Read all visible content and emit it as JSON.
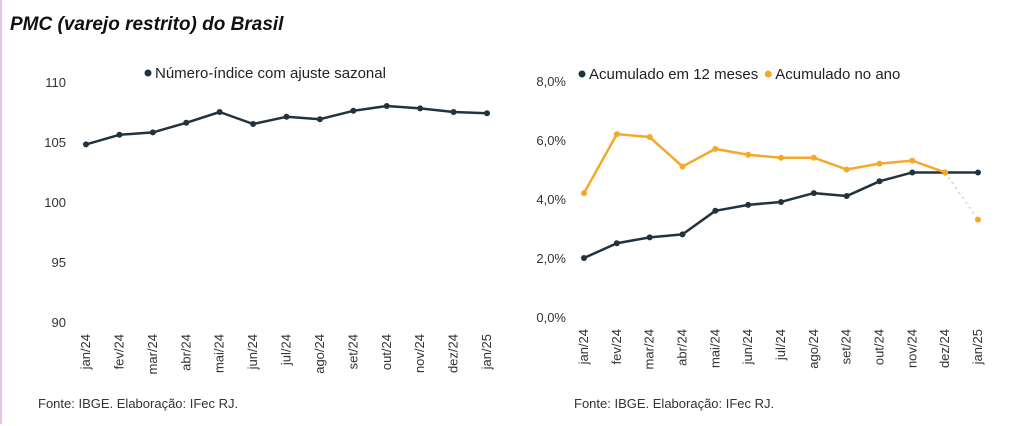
{
  "title": "PMC (varejo restrito) do Brasil",
  "colors": {
    "dark": "#223340",
    "orange": "#f5a92b"
  },
  "chart_data": [
    {
      "type": "line",
      "categories": [
        "jan/24",
        "fev/24",
        "mar/24",
        "abr/24",
        "mai/24",
        "jun/24",
        "jul/24",
        "ago/24",
        "set/24",
        "out/24",
        "nov/24",
        "dez/24",
        "jan/25"
      ],
      "series": [
        {
          "name": "Número-índice com ajuste sazonal",
          "values": [
            104.8,
            105.6,
            105.8,
            106.6,
            107.5,
            106.5,
            107.1,
            106.9,
            107.6,
            108.0,
            107.8,
            107.5,
            107.4
          ]
        }
      ],
      "ylim": [
        90,
        110
      ],
      "yticks": [
        "90",
        "95",
        "100",
        "105",
        "110"
      ],
      "legend": "top",
      "source": "Fonte: IBGE. Elaboração: IFec RJ."
    },
    {
      "type": "line",
      "categories": [
        "jan/24",
        "fev/24",
        "mar/24",
        "abr/24",
        "mai/24",
        "jun/24",
        "jul/24",
        "ago/24",
        "set/24",
        "out/24",
        "nov/24",
        "dez/24",
        "jan/25"
      ],
      "series": [
        {
          "name": "Acumulado em 12 meses",
          "values": [
            2.0,
            2.5,
            2.7,
            2.8,
            3.6,
            3.8,
            3.9,
            4.2,
            4.1,
            4.6,
            4.9,
            4.9,
            4.9
          ]
        },
        {
          "name": "Acumulado no ano",
          "values": [
            4.2,
            6.2,
            6.1,
            5.1,
            5.7,
            5.5,
            5.4,
            5.4,
            5.0,
            5.2,
            5.3,
            4.9,
            3.3
          ]
        }
      ],
      "ylim": [
        0,
        8
      ],
      "yticks": [
        "0,0%",
        "2,0%",
        "4,0%",
        "6,0%",
        "8,0%"
      ],
      "legend": "top",
      "source": "Fonte: IBGE. Elaboração: IFec RJ."
    }
  ]
}
